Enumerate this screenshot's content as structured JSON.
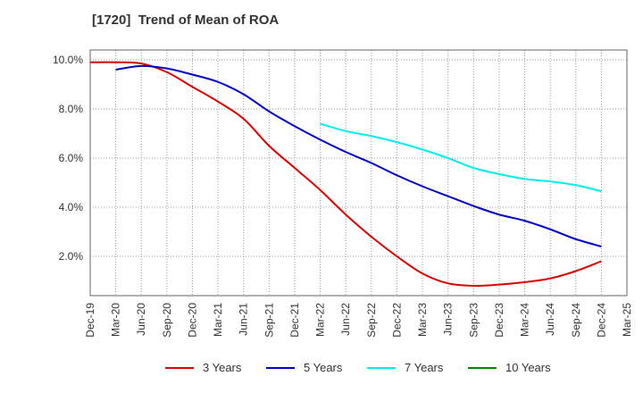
{
  "chart_data": {
    "type": "line",
    "title": "[1720]  Trend of Mean of ROA",
    "xlabel": "",
    "ylabel": "",
    "x": [
      "Dec-19",
      "Mar-20",
      "Jun-20",
      "Sep-20",
      "Dec-20",
      "Mar-21",
      "Jun-21",
      "Sep-21",
      "Dec-21",
      "Mar-22",
      "Jun-22",
      "Sep-22",
      "Dec-22",
      "Mar-23",
      "Jun-23",
      "Sep-23",
      "Dec-23",
      "Mar-24",
      "Jun-24",
      "Sep-24",
      "Dec-24",
      "Mar-25"
    ],
    "ylim": [
      0.4,
      10.4
    ],
    "yticks": [
      2.0,
      4.0,
      6.0,
      8.0,
      10.0
    ],
    "ytick_labels": [
      "2.0%",
      "4.0%",
      "6.0%",
      "8.0%",
      "10.0%"
    ],
    "grid": true,
    "legend_position": "bottom",
    "series": [
      {
        "name": "3 Years",
        "color": "#dd0000",
        "values": [
          9.9,
          9.9,
          9.85,
          9.5,
          8.9,
          8.3,
          7.6,
          6.5,
          5.6,
          4.7,
          3.7,
          2.8,
          2.0,
          1.3,
          0.9,
          0.8,
          0.85,
          0.95,
          1.1,
          1.4,
          1.8,
          null
        ]
      },
      {
        "name": "5 Years",
        "color": "#0000cc",
        "values": [
          null,
          9.6,
          9.75,
          9.65,
          9.4,
          9.1,
          8.6,
          7.9,
          7.3,
          6.75,
          6.25,
          5.8,
          5.3,
          4.85,
          4.45,
          4.05,
          3.7,
          3.45,
          3.1,
          2.7,
          2.4,
          null
        ]
      },
      {
        "name": "7 Years",
        "color": "#00eeee",
        "values": [
          null,
          null,
          null,
          null,
          null,
          null,
          null,
          null,
          null,
          7.4,
          7.1,
          6.9,
          6.65,
          6.35,
          6.0,
          5.6,
          5.35,
          5.15,
          5.05,
          4.9,
          4.65,
          null
        ]
      },
      {
        "name": "10 Years",
        "color": "#008800",
        "values": [
          null,
          null,
          null,
          null,
          null,
          null,
          null,
          null,
          null,
          null,
          null,
          null,
          null,
          null,
          null,
          null,
          null,
          null,
          null,
          null,
          null,
          null
        ]
      }
    ]
  }
}
